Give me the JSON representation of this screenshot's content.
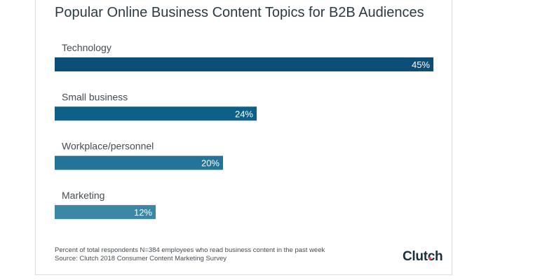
{
  "title": "Popular Online Business Content Topics for B2B Audiences",
  "footnote_respondents": "Percent of total respondents N=384 employees who read business content in the past week",
  "footnote_source": "Source: Clutch 2018 Consumer Content Marketing Survey",
  "logo_text": "Clutch",
  "colors": {
    "logo_dot": "#ef4a5d",
    "bars": [
      "#0d4e78",
      "#0d6189",
      "#247497",
      "#3c86a6"
    ]
  },
  "chart_data": {
    "type": "bar",
    "orientation": "horizontal",
    "categories": [
      "Technology",
      "Small business",
      "Workplace/personnel",
      "Marketing"
    ],
    "values": [
      45,
      24,
      20,
      12
    ],
    "value_labels": [
      "45%",
      "24%",
      "20%",
      "12%"
    ],
    "xlim": [
      0,
      45
    ],
    "grid": false,
    "title": "Popular Online Business Content Topics for B2B Audiences"
  }
}
